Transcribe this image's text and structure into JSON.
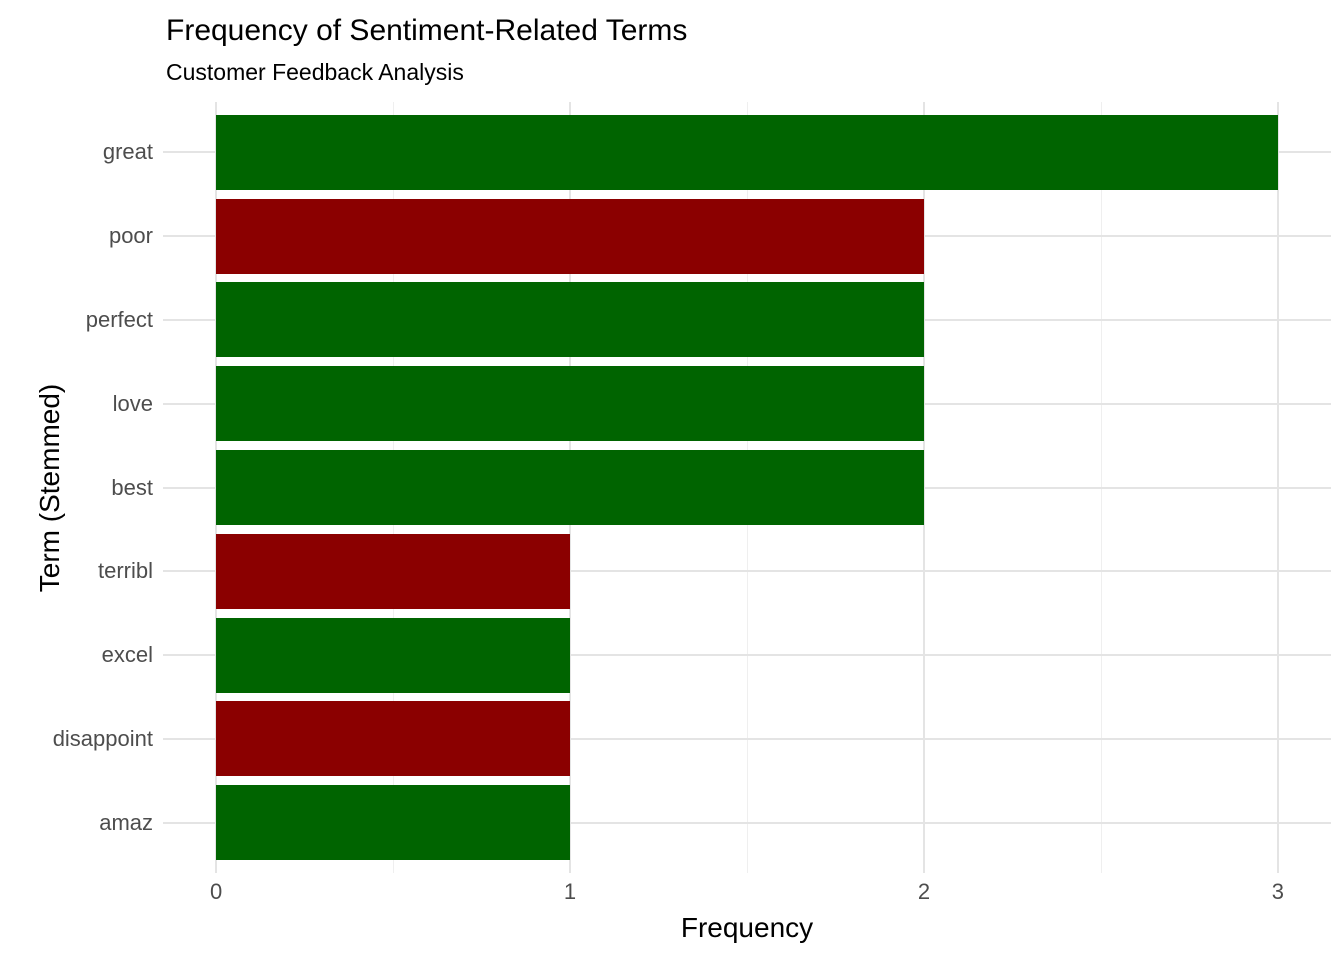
{
  "chart_data": {
    "type": "bar",
    "orientation": "horizontal",
    "title": "Frequency of Sentiment-Related Terms",
    "subtitle": "Customer Feedback Analysis",
    "xlabel": "Frequency",
    "ylabel": "Term (Stemmed)",
    "categories": [
      "great",
      "poor",
      "perfect",
      "love",
      "best",
      "terribl",
      "excel",
      "disappoint",
      "amaz"
    ],
    "values": [
      3,
      2,
      2,
      2,
      2,
      1,
      1,
      1,
      1
    ],
    "sentiment": [
      "positive",
      "negative",
      "positive",
      "positive",
      "positive",
      "negative",
      "positive",
      "negative",
      "positive"
    ],
    "x_ticks": [
      0,
      1,
      2,
      3
    ],
    "x_minor_ticks": [
      0.5,
      1.5,
      2.5
    ],
    "xlim": [
      -0.15,
      3.15
    ],
    "bar_width_fraction": 0.9,
    "grid": "vertical major+minor, horizontal major at category centers",
    "legend": "none"
  },
  "style": {
    "positive_color": "#006400",
    "negative_color": "#8B0000",
    "grid_major_color": "#e4e4e4",
    "grid_minor_color": "#efefef",
    "tick_label_color": "#4d4d4d",
    "text_color": "#000000",
    "background_color": "#ffffff"
  }
}
